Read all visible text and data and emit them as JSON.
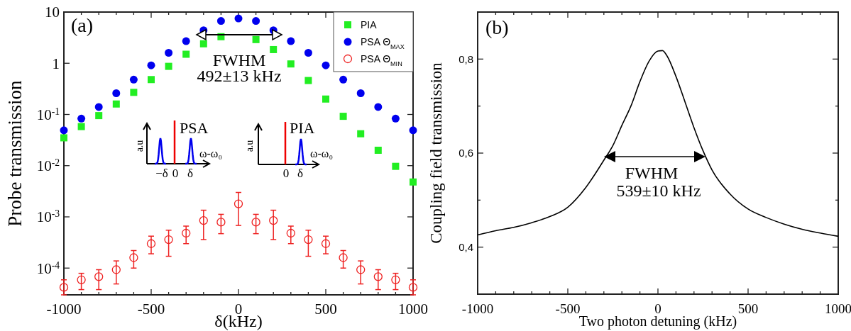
{
  "chart_data": [
    {
      "type": "scatter",
      "xlabel": "δ(kHz)",
      "ylabel": "Probe transmission",
      "log": "y",
      "legend": "top right",
      "xlim": [
        -1000,
        1000
      ],
      "xticks": [
        -1000,
        {
          "value": -900,
          "label": null
        },
        {
          "value": -800,
          "label": null
        },
        {
          "value": -700,
          "label": null
        },
        {
          "value": -600,
          "label": null
        },
        -500,
        {
          "value": -400,
          "label": null
        },
        {
          "value": -300,
          "label": null
        },
        {
          "value": -200,
          "label": null
        },
        {
          "value": -100,
          "label": null
        },
        0,
        {
          "value": 100,
          "label": null
        },
        {
          "value": 200,
          "label": null
        },
        {
          "value": 300,
          "label": null
        },
        {
          "value": 400,
          "label": null
        },
        500,
        {
          "value": 600,
          "label": null
        },
        {
          "value": 700,
          "label": null
        },
        {
          "value": 800,
          "label": null
        },
        {
          "value": 900,
          "label": null
        },
        1000
      ],
      "ylim": [
        3e-05,
        10
      ],
      "yticks": [
        {
          "value": 0.0001,
          "label": "10$^{-4}$"
        },
        {
          "value": 0.001,
          "label": "10$^{-3}$"
        },
        {
          "value": 0.01,
          "label": "10$^{-2}$"
        },
        {
          "value": 0.1,
          "label": "10$^{-1}$"
        },
        1,
        10
      ],
      "x": [
        -1000,
        -900,
        -800,
        -700,
        -600,
        -500,
        -400,
        -300,
        -200,
        -100,
        0,
        100,
        200,
        300,
        400,
        500,
        600,
        700,
        800,
        900,
        1000
      ],
      "series": [
        {
          "name": "PIA",
          "color": "#22ee22",
          "marker": "square",
          "values": [
            0.035,
            0.058,
            0.095,
            0.16,
            0.27,
            0.48,
            0.87,
            1.5,
            2.4,
            3.3,
            null,
            2.9,
            1.85,
            0.97,
            0.46,
            0.2,
            0.092,
            0.042,
            0.02,
            0.0097,
            0.0048
          ]
        },
        {
          "name": "PSA Θ$_{MAX}$",
          "color": "#0000ee",
          "marker": "circle",
          "values": [
            0.049,
            0.083,
            0.14,
            0.26,
            0.48,
            0.91,
            1.6,
            2.7,
            4.4,
            6.7,
            7.5,
            6.7,
            4.4,
            2.7,
            1.6,
            0.91,
            0.48,
            0.26,
            0.14,
            0.083,
            0.049
          ]
        },
        {
          "name": "PSA Θ$_{MIN}$",
          "color": "#ee2222",
          "marker": "circle",
          "values": [
            4.2e-05,
            5.9e-05,
            6.8e-05,
            9.3e-05,
            0.00016,
            0.0003,
            0.00036,
            0.00048,
            0.00085,
            0.00079,
            0.0018,
            0.00079,
            0.00085,
            0.00048,
            0.00036,
            0.0003,
            0.00016,
            9.3e-05,
            6.8e-05,
            5.9e-05,
            4.2e-05
          ],
          "errors": [
            [
              3e-05,
              5.9e-05
            ],
            [
              3.8e-05,
              7.9e-05
            ],
            [
              3.8e-05,
              9.3e-05
            ],
            [
              4.9e-05,
              0.000138
            ],
            [
              0.0001,
              0.00022
            ],
            [
              0.00019,
              0.00042
            ],
            [
              0.00017,
              0.00055
            ],
            [
              0.0003,
              0.00066
            ],
            [
              0.00036,
              0.00135
            ],
            [
              0.00047,
              0.00112
            ],
            [
              0.00068,
              0.003
            ],
            [
              0.00047,
              0.00112
            ],
            [
              0.00036,
              0.00135
            ],
            [
              0.0003,
              0.00066
            ],
            [
              0.00017,
              0.00055
            ],
            [
              0.00019,
              0.00042
            ],
            [
              0.0001,
              0.00022
            ],
            [
              4.9e-05,
              0.000138
            ],
            [
              3.8e-05,
              9.3e-05
            ],
            [
              3.8e-05,
              7.9e-05
            ],
            [
              3e-05,
              5.9e-05
            ]
          ]
        }
      ],
      "annotations": [
        "(a)",
        "FWHM",
        "492±13 kHz",
        "PSA",
        "a.u",
        "ω-ω₀",
        "−δ",
        "0",
        "δ",
        "PIA",
        "a.u",
        "ω-ω₀",
        "0",
        "δ"
      ]
    },
    {
      "type": "line",
      "xlabel": "Two photon detuning (kHz)",
      "ylabel": "Coupling field transmission",
      "xlim": [
        -1000,
        1000
      ],
      "xticks": [
        -1000,
        {
          "value": -900,
          "label": null
        },
        {
          "value": -800,
          "label": null
        },
        {
          "value": -700,
          "label": null
        },
        {
          "value": -600,
          "label": null
        },
        -500,
        {
          "value": -400,
          "label": null
        },
        {
          "value": -300,
          "label": null
        },
        {
          "value": -200,
          "label": null
        },
        {
          "value": -100,
          "label": null
        },
        0,
        {
          "value": 100,
          "label": null
        },
        {
          "value": 200,
          "label": null
        },
        {
          "value": 300,
          "label": null
        },
        {
          "value": 400,
          "label": null
        },
        500,
        {
          "value": 600,
          "label": null
        },
        {
          "value": 700,
          "label": null
        },
        {
          "value": 800,
          "label": null
        },
        {
          "value": 900,
          "label": null
        },
        1000
      ],
      "ylim": [
        0.3,
        0.9
      ],
      "yticks": [
        {
          "value": 0.4,
          "label": "0,4"
        },
        {
          "value": 0.5,
          "label": null
        },
        {
          "value": 0.6,
          "label": "0,6"
        },
        {
          "value": 0.7,
          "label": null
        },
        {
          "value": 0.8,
          "label": "0,8"
        }
      ],
      "x": [
        -1000,
        -900,
        -800,
        -700,
        -600,
        -500,
        -400,
        -300,
        -250,
        -200,
        -150,
        -100,
        -50,
        0,
        25,
        50,
        100,
        150,
        200,
        250,
        300,
        400,
        500,
        600,
        700,
        800,
        900,
        1000
      ],
      "series": [
        {
          "color": "#000000",
          "values": [
            0.426,
            0.435,
            0.442,
            0.452,
            0.465,
            0.485,
            0.527,
            0.585,
            0.616,
            0.659,
            0.7,
            0.752,
            0.795,
            0.817,
            0.818,
            0.807,
            0.763,
            0.709,
            0.654,
            0.605,
            0.564,
            0.513,
            0.481,
            0.463,
            0.449,
            0.438,
            0.43,
            0.423
          ]
        }
      ],
      "annotations": [
        "(b)",
        "FWHM",
        "539±10 kHz"
      ]
    }
  ]
}
